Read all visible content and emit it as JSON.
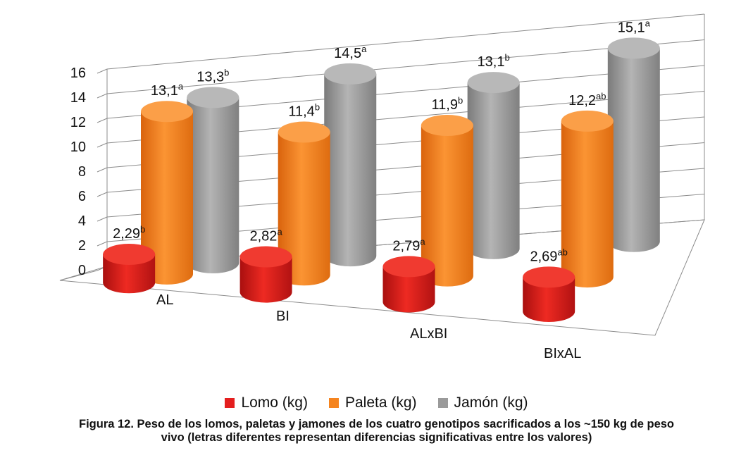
{
  "chart_data": {
    "type": "bar",
    "subtype": "3d-cylinder-grouped",
    "categories": [
      "AL",
      "BI",
      "ALxBI",
      "BIxAL"
    ],
    "series": [
      {
        "name": "Lomo (kg)",
        "color": "#e41e1e",
        "values": [
          2.29,
          2.82,
          2.79,
          2.69
        ],
        "labels": [
          "2,29",
          "2,82",
          "2,79",
          "2,69"
        ],
        "sig": [
          "b",
          "a",
          "a",
          "ab"
        ]
      },
      {
        "name": "Paleta (kg)",
        "color": "#f5841f",
        "values": [
          13.1,
          11.4,
          11.9,
          12.2
        ],
        "labels": [
          "13,1",
          "11,4",
          "11,9",
          "12,2"
        ],
        "sig": [
          "a",
          "b",
          "b",
          "ab"
        ]
      },
      {
        "name": "Jamón (kg)",
        "color": "#9a9a9a",
        "values": [
          13.3,
          14.5,
          13.1,
          15.1
        ],
        "labels": [
          "13,3",
          "14,5",
          "13,1",
          "15,1"
        ],
        "sig": [
          "b",
          "a",
          "b",
          "a"
        ]
      }
    ],
    "yticks": [
      "0",
      "2",
      "4",
      "6",
      "8",
      "10",
      "12",
      "14",
      "16"
    ],
    "ylim": [
      0,
      16
    ],
    "grid": true,
    "legend_position": "bottom"
  },
  "caption": {
    "line1": "Figura 12. Peso de los lomos, paletas y jamones de los cuatro genotipos sacrificados a los ~150 kg de peso",
    "line2": "vivo (letras diferentes representan diferencias significativas entre los valores)"
  }
}
